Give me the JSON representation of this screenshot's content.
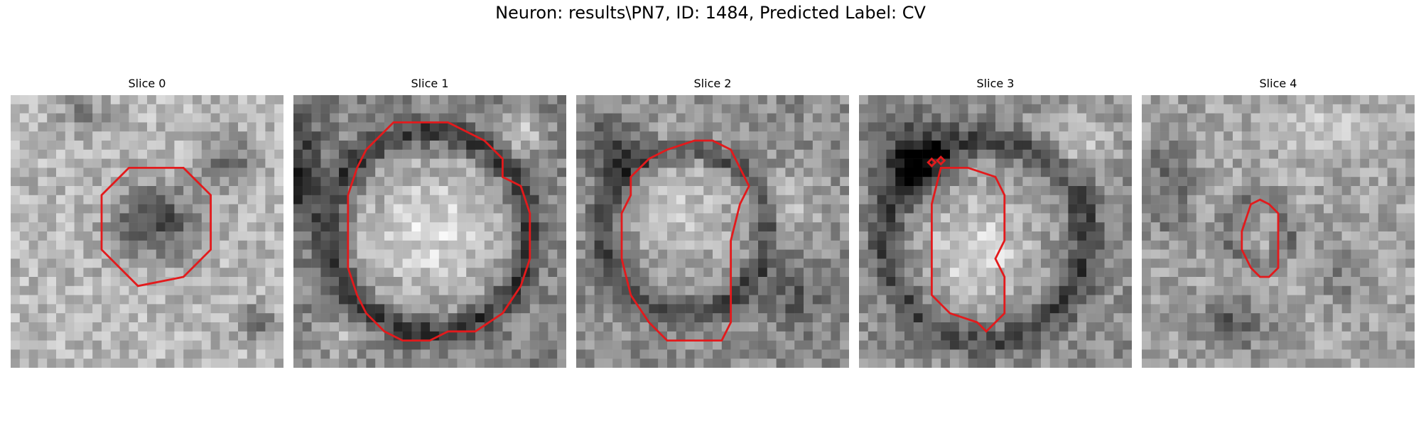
{
  "figure": {
    "suptitle": "Neuron: results\\PN7, ID: 1484, Predicted Label: CV",
    "contour_color": "#e31a1c",
    "colormap": "gray"
  },
  "slices": [
    {
      "title": "Slice 0",
      "pattern": "dark-blob-center"
    },
    {
      "title": "Slice 1",
      "pattern": "bright-vesicle-large"
    },
    {
      "title": "Slice 2",
      "pattern": "medium-vesicle"
    },
    {
      "title": "Slice 3",
      "pattern": "bright-vesicle-dark-upper-left"
    },
    {
      "title": "Slice 4",
      "pattern": "faint-small-ring"
    }
  ]
}
